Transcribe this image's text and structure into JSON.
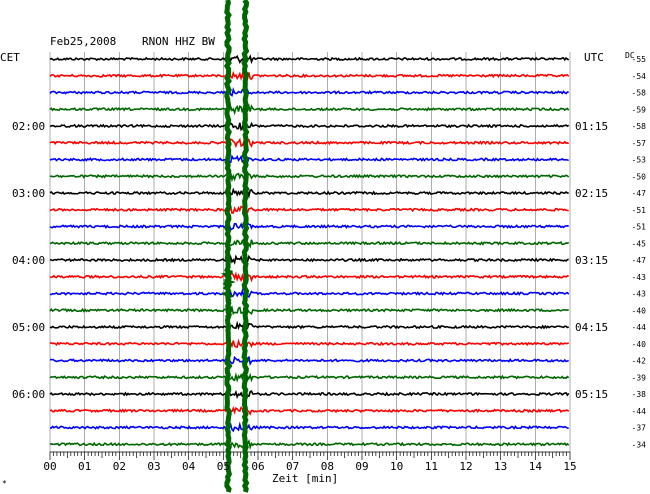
{
  "header": {
    "date": "Feb25,2008",
    "station": "RNON HHZ BW",
    "left_tz": "CET",
    "right_tz": "UTC",
    "dc_label": "DC"
  },
  "colors": {
    "trace_cycle": [
      "#000000",
      "#ff0000",
      "#0000ff",
      "#006600"
    ],
    "event": "#006600",
    "grid": "#777777"
  },
  "chart_data": {
    "type": "line",
    "title": "Feb25,2008 RNON HHZ BW",
    "xlabel": "Zeit [min]",
    "ylabel": "",
    "xlim": [
      0,
      15
    ],
    "x_ticks": [
      "00",
      "01",
      "02",
      "03",
      "04",
      "05",
      "06",
      "07",
      "08",
      "09",
      "10",
      "11",
      "12",
      "13",
      "14",
      "15"
    ],
    "grid": true,
    "traces_per_hour": 4,
    "left_time_labels": [
      "02:00",
      "03:00",
      "04:00",
      "05:00",
      "06:00"
    ],
    "right_time_labels": [
      "01:15",
      "02:15",
      "03:15",
      "04:15",
      "05:15"
    ],
    "dc_offsets": [
      -55,
      -54,
      -58,
      -59,
      -58,
      -57,
      -53,
      -50,
      -47,
      -51,
      -51,
      -45,
      -47,
      -43,
      -43,
      -40,
      -44,
      -40,
      -42,
      -39,
      -38,
      -44,
      -37,
      -34
    ],
    "event": {
      "start_min": 5.15,
      "end_min": 5.75,
      "traces": "all"
    },
    "corner_mark": "*"
  }
}
